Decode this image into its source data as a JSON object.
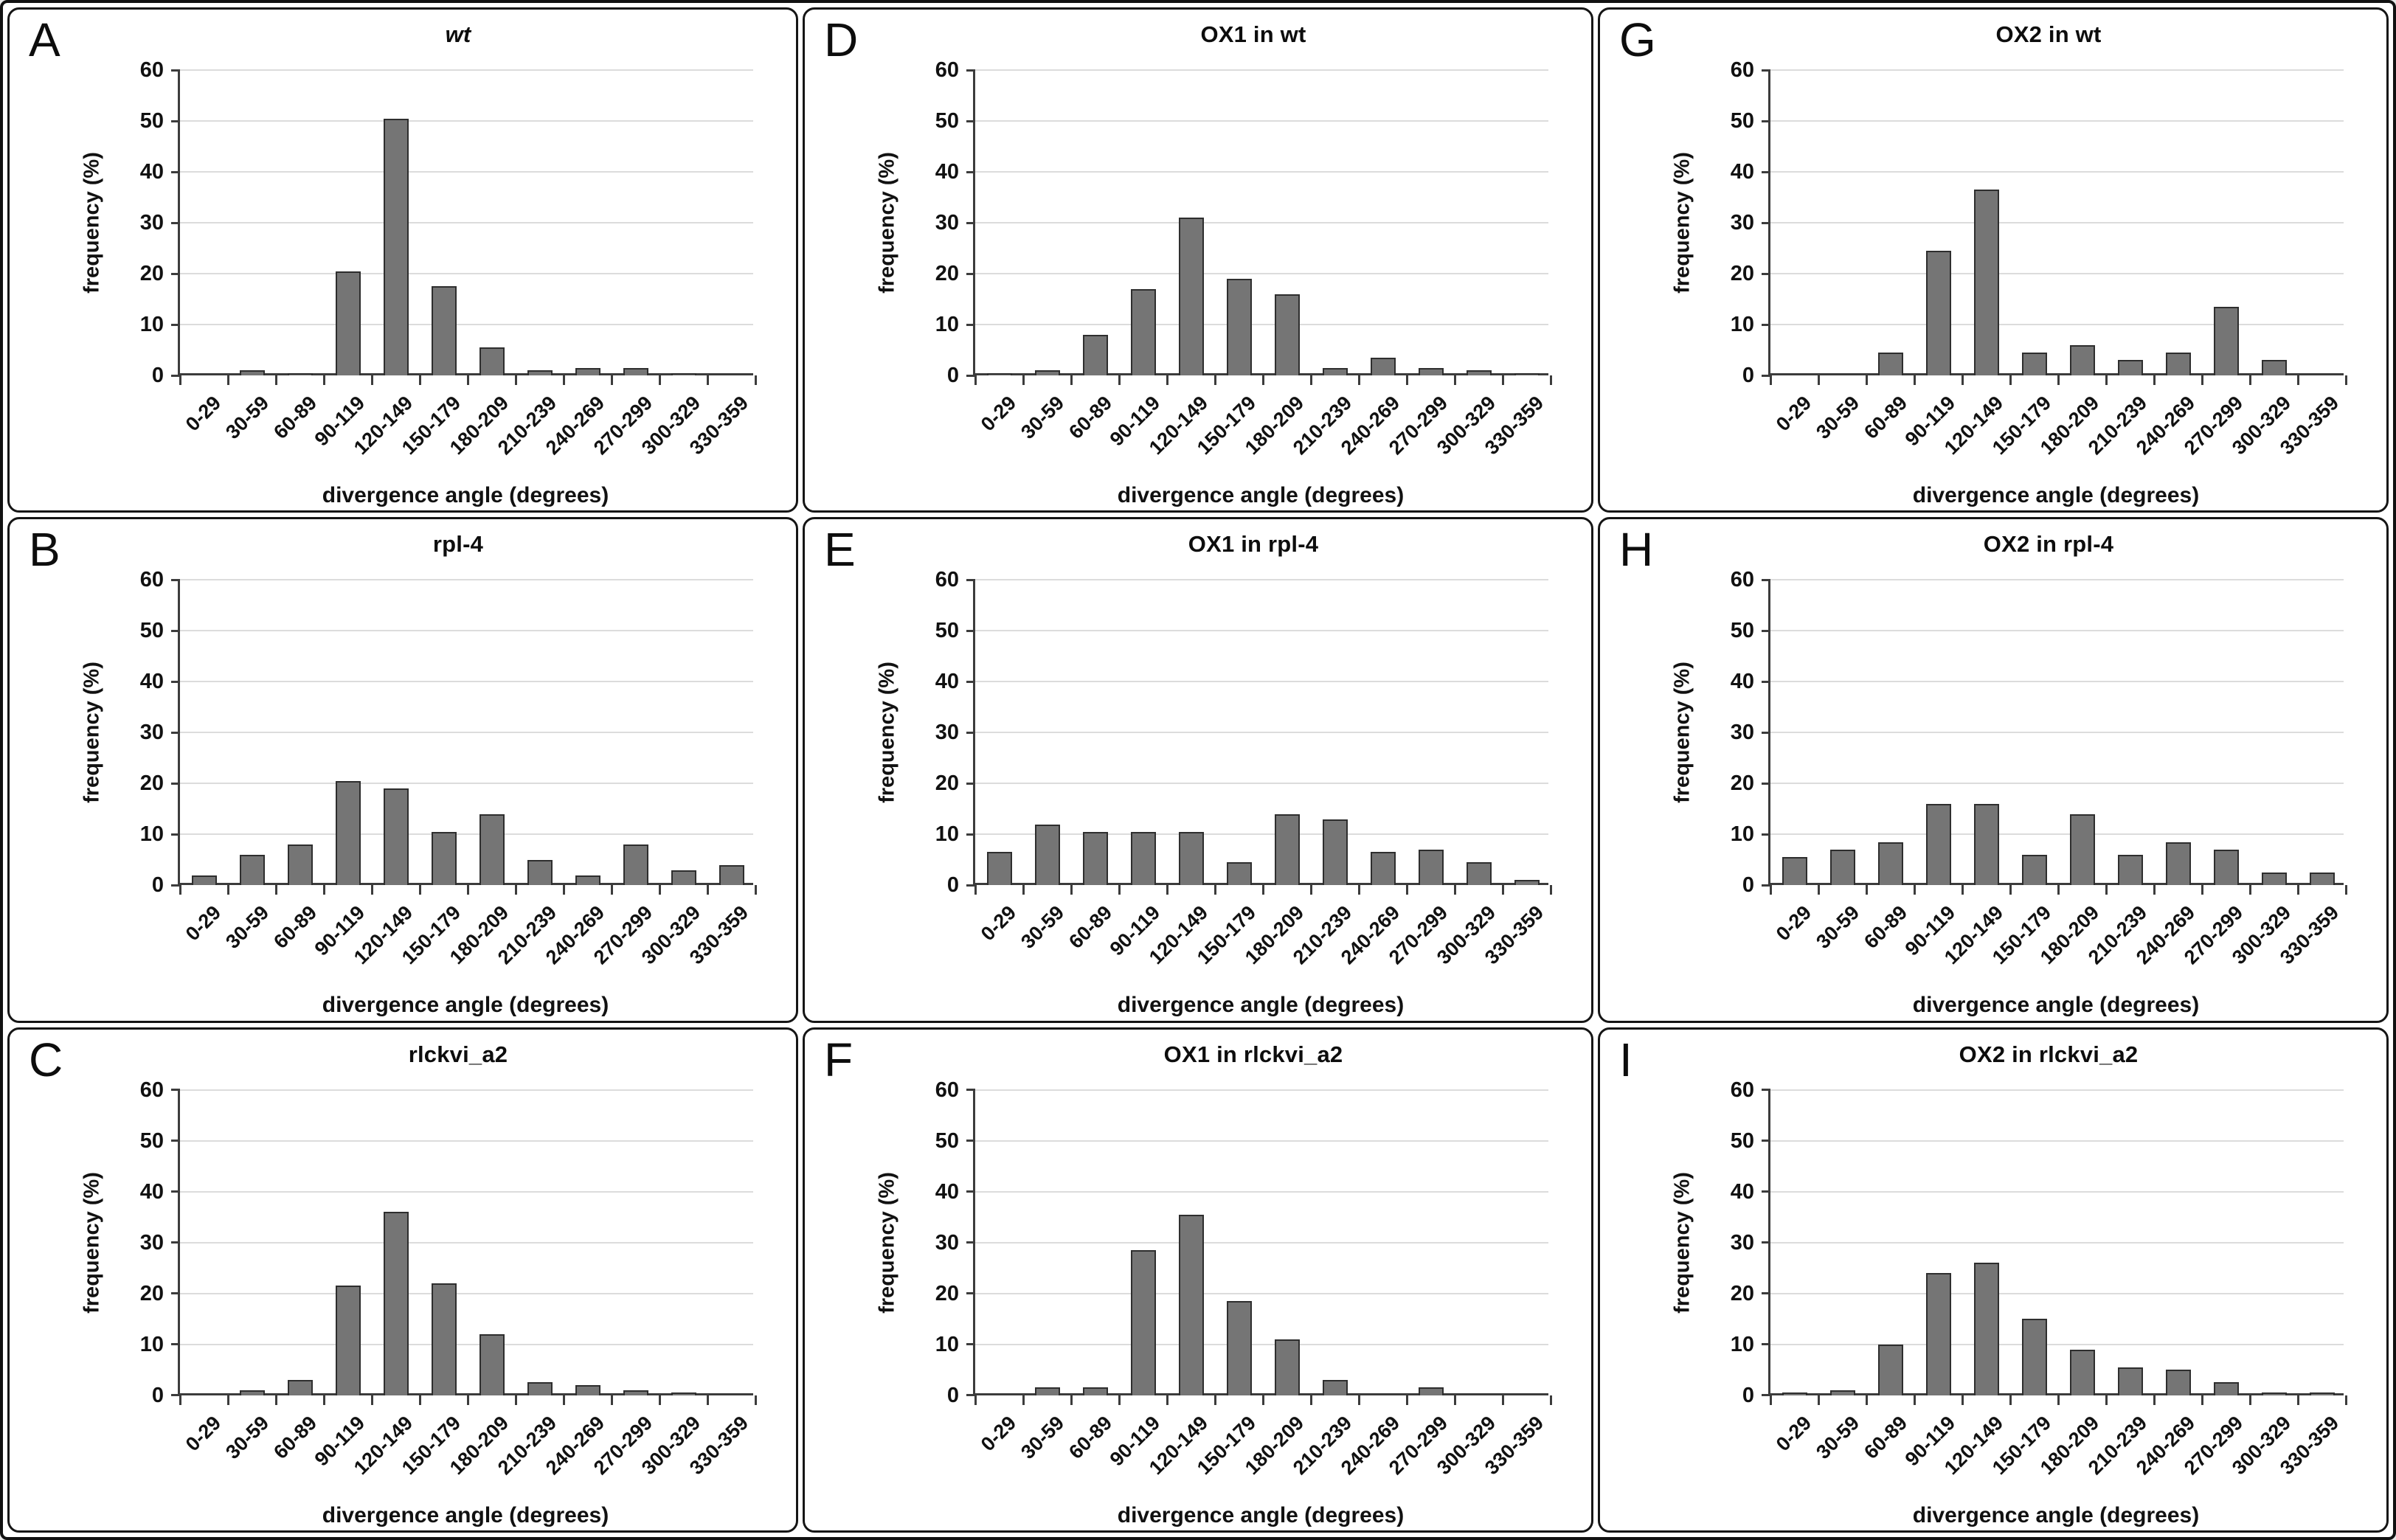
{
  "figure": {
    "y_axis": {
      "label": "frequency (%)",
      "ticks": [
        0,
        10,
        20,
        30,
        40,
        50,
        60
      ],
      "max": 60
    },
    "x_axis": {
      "label": "divergence angle (degrees)"
    },
    "colors": {
      "bar_fill": "#757575",
      "bar_border": "#2e2e2e",
      "gridline": "#dcdcdc",
      "axis": "#3c3c3c",
      "panel_border": "#151515",
      "background": "#ffffff"
    }
  },
  "categories": [
    "0-29",
    "30-59",
    "60-89",
    "90-119",
    "120-149",
    "150-179",
    "180-209",
    "210-239",
    "240-269",
    "270-299",
    "300-329",
    "330-359"
  ],
  "chart_data": [
    {
      "panel": "A",
      "title": "wt",
      "title_style": "italic",
      "type": "bar",
      "categories": [
        "0-29",
        "30-59",
        "60-89",
        "90-119",
        "120-149",
        "150-179",
        "180-209",
        "210-239",
        "240-269",
        "270-299",
        "300-329",
        "330-359"
      ],
      "values": [
        0,
        1,
        0.5,
        20.5,
        50.5,
        17.5,
        5.5,
        1,
        1.5,
        1.5,
        0.5,
        0
      ],
      "xlabel": "divergence angle (degrees)",
      "ylabel": "frequency (%)",
      "ylim": [
        0,
        60
      ],
      "grid": true,
      "legend": false
    },
    {
      "panel": "B",
      "title": "rpl-4",
      "title_style": "normal",
      "type": "bar",
      "categories": [
        "0-29",
        "30-59",
        "60-89",
        "90-119",
        "120-149",
        "150-179",
        "180-209",
        "210-239",
        "240-269",
        "270-299",
        "300-329",
        "330-359"
      ],
      "values": [
        2,
        6,
        8,
        20.5,
        19,
        10.5,
        14,
        5,
        2,
        8,
        3,
        4
      ],
      "xlabel": "divergence angle (degrees)",
      "ylabel": "frequency (%)",
      "ylim": [
        0,
        60
      ],
      "grid": true,
      "legend": false
    },
    {
      "panel": "C",
      "title": "rlckvi_a2",
      "title_style": "normal",
      "type": "bar",
      "categories": [
        "0-29",
        "30-59",
        "60-89",
        "90-119",
        "120-149",
        "150-179",
        "180-209",
        "210-239",
        "240-269",
        "270-299",
        "300-329",
        "330-359"
      ],
      "values": [
        0,
        1,
        3,
        21.5,
        36,
        22,
        12,
        2.5,
        2,
        1,
        0.5,
        0
      ],
      "xlabel": "divergence angle (degrees)",
      "ylabel": "frequency (%)",
      "ylim": [
        0,
        60
      ],
      "grid": true,
      "legend": false
    },
    {
      "panel": "D",
      "title": "OX1 in wt",
      "title_style": "normal",
      "type": "bar",
      "categories": [
        "0-29",
        "30-59",
        "60-89",
        "90-119",
        "120-149",
        "150-179",
        "180-209",
        "210-239",
        "240-269",
        "270-299",
        "300-329",
        "330-359"
      ],
      "values": [
        0.5,
        1,
        8,
        17,
        31,
        19,
        16,
        1.5,
        3.5,
        1.5,
        1,
        0.5
      ],
      "xlabel": "divergence angle (degrees)",
      "ylabel": "frequency (%)",
      "ylim": [
        0,
        60
      ],
      "grid": true,
      "legend": false
    },
    {
      "panel": "E",
      "title": "OX1 in rpl-4",
      "title_style": "normal",
      "type": "bar",
      "categories": [
        "0-29",
        "30-59",
        "60-89",
        "90-119",
        "120-149",
        "150-179",
        "180-209",
        "210-239",
        "240-269",
        "270-299",
        "300-329",
        "330-359"
      ],
      "values": [
        6.5,
        12,
        10.5,
        10.5,
        10.5,
        4.5,
        14,
        13,
        6.5,
        7,
        4.5,
        1
      ],
      "xlabel": "divergence angle (degrees)",
      "ylabel": "frequency (%)",
      "ylim": [
        0,
        60
      ],
      "grid": true,
      "legend": false
    },
    {
      "panel": "F",
      "title": "OX1 in rlckvi_a2",
      "title_style": "normal",
      "type": "bar",
      "categories": [
        "0-29",
        "30-59",
        "60-89",
        "90-119",
        "120-149",
        "150-179",
        "180-209",
        "210-239",
        "240-269",
        "270-299",
        "300-329",
        "330-359"
      ],
      "values": [
        0,
        1.5,
        1.5,
        28.5,
        35.5,
        18.5,
        11,
        3,
        0,
        1.5,
        0,
        0
      ],
      "xlabel": "divergence angle (degrees)",
      "ylabel": "frequency (%)",
      "ylim": [
        0,
        60
      ],
      "grid": true,
      "legend": false
    },
    {
      "panel": "G",
      "title": "OX2 in wt",
      "title_style": "normal",
      "type": "bar",
      "categories": [
        "0-29",
        "30-59",
        "60-89",
        "90-119",
        "120-149",
        "150-179",
        "180-209",
        "210-239",
        "240-269",
        "270-299",
        "300-329",
        "330-359"
      ],
      "values": [
        0,
        0,
        4.5,
        24.5,
        36.5,
        4.5,
        6,
        3,
        4.5,
        13.5,
        3,
        0
      ],
      "xlabel": "divergence angle (degrees)",
      "ylabel": "frequency (%)",
      "ylim": [
        0,
        60
      ],
      "grid": true,
      "legend": false
    },
    {
      "panel": "H",
      "title": "OX2 in rpl-4",
      "title_style": "normal",
      "type": "bar",
      "categories": [
        "0-29",
        "30-59",
        "60-89",
        "90-119",
        "120-149",
        "150-179",
        "180-209",
        "210-239",
        "240-269",
        "270-299",
        "300-329",
        "330-359"
      ],
      "values": [
        5.5,
        7,
        8.5,
        16,
        16,
        6,
        14,
        6,
        8.5,
        7,
        2.5,
        2.5
      ],
      "xlabel": "divergence angle (degrees)",
      "ylabel": "frequency (%)",
      "ylim": [
        0,
        60
      ],
      "grid": true,
      "legend": false
    },
    {
      "panel": "I",
      "title": "OX2 in rlckvi_a2",
      "title_style": "normal",
      "type": "bar",
      "categories": [
        "0-29",
        "30-59",
        "60-89",
        "90-119",
        "120-149",
        "150-179",
        "180-209",
        "210-239",
        "240-269",
        "270-299",
        "300-329",
        "330-359"
      ],
      "values": [
        0.5,
        1,
        10,
        24,
        26,
        15,
        9,
        5.5,
        5,
        2.5,
        0.5,
        0.5
      ],
      "xlabel": "divergence angle (degrees)",
      "ylabel": "frequency (%)",
      "ylim": [
        0,
        60
      ],
      "grid": true,
      "legend": false
    }
  ]
}
